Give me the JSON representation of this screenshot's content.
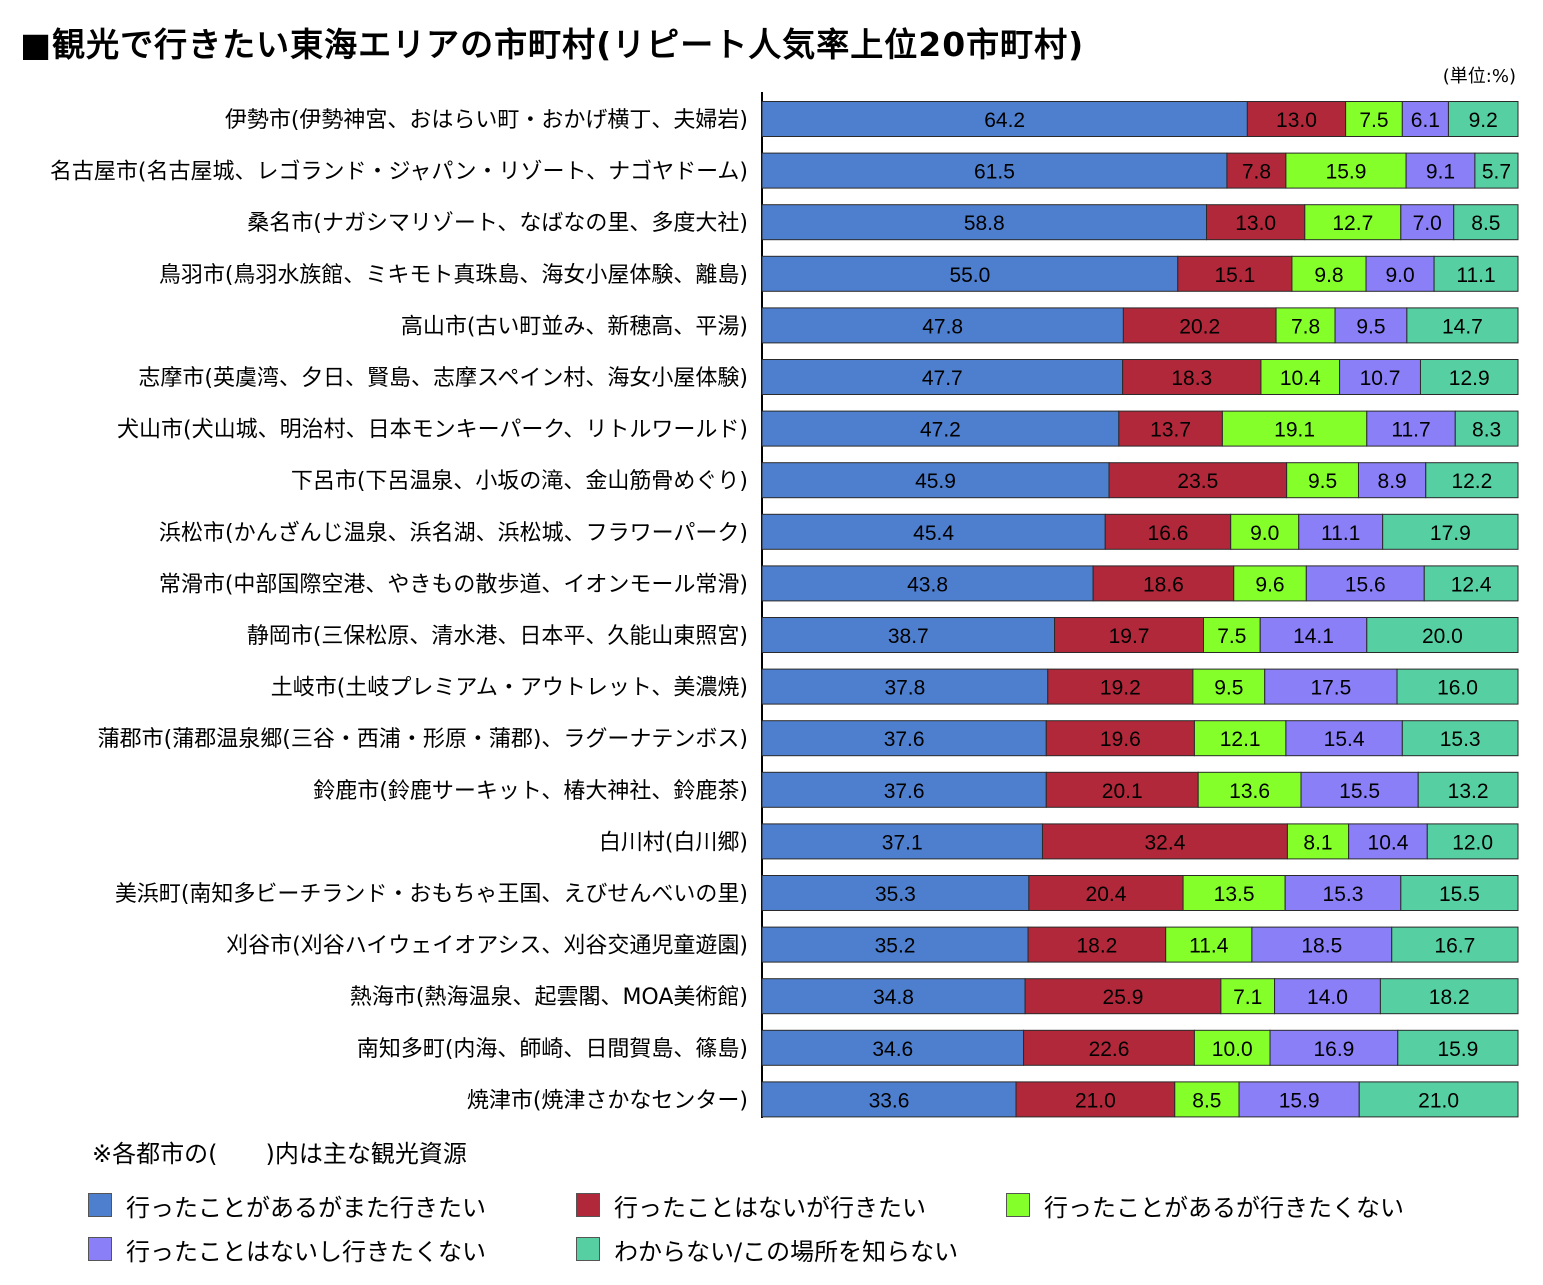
{
  "title": "■観光で行きたい東海エリアの市町村(リピート人気率上位20市町村)",
  "unit": "(単位:%)",
  "note": "※各都市の(　　)内は主な観光資源",
  "colors": [
    "#4e7fcf",
    "#b1283a",
    "#85ff2a",
    "#8a7ff7",
    "#56cfa3"
  ],
  "chart_data": {
    "type": "bar",
    "orientation": "horizontal",
    "stacked": true,
    "xlim": [
      0,
      100
    ],
    "categories": [
      "伊勢市(伊勢神宮、おはらい町・おかげ横丁、夫婦岩)",
      "名古屋市(名古屋城、レゴランド・ジャパン・リゾート、ナゴヤドーム)",
      "桑名市(ナガシマリゾート、なばなの里、多度大社)",
      "鳥羽市(鳥羽水族館、ミキモト真珠島、海女小屋体験、離島)",
      "高山市(古い町並み、新穂高、平湯)",
      "志摩市(英虞湾、夕日、賢島、志摩スペイン村、海女小屋体験)",
      "犬山市(犬山城、明治村、日本モンキーパーク、リトルワールド)",
      "下呂市(下呂温泉、小坂の滝、金山筋骨めぐり)",
      "浜松市(かんざんじ温泉、浜名湖、浜松城、フラワーパーク)",
      "常滑市(中部国際空港、やきもの散歩道、イオンモール常滑)",
      "静岡市(三保松原、清水港、日本平、久能山東照宮)",
      "土岐市(土岐プレミアム・アウトレット、美濃焼)",
      "蒲郡市(蒲郡温泉郷(三谷・西浦・形原・蒲郡)、ラグーナテンボス)",
      "鈴鹿市(鈴鹿サーキット、椿大神社、鈴鹿茶)",
      "白川村(白川郷)",
      "美浜町(南知多ビーチランド・おもちゃ王国、えびせんべいの里)",
      "刈谷市(刈谷ハイウェイオアシス、刈谷交通児童遊園)",
      "熱海市(熱海温泉、起雲閣、MOA美術館)",
      "南知多町(内海、師崎、日間賀島、篠島)",
      "焼津市(焼津さかなセンター)"
    ],
    "series": [
      {
        "name": "行ったことがあるがまた行きたい",
        "values": [
          "64.2",
          "61.5",
          "58.8",
          "55.0",
          "47.8",
          "47.7",
          "47.2",
          "45.9",
          "45.4",
          "43.8",
          "38.7",
          "37.8",
          "37.6",
          "37.6",
          "37.1",
          "35.3",
          "35.2",
          "34.8",
          "34.6",
          "33.6"
        ]
      },
      {
        "name": "行ったことはないが行きたい",
        "values": [
          "13.0",
          "7.8",
          "13.0",
          "15.1",
          "20.2",
          "18.3",
          "13.7",
          "23.5",
          "16.6",
          "18.6",
          "19.7",
          "19.2",
          "19.6",
          "20.1",
          "32.4",
          "20.4",
          "18.2",
          "25.9",
          "22.6",
          "21.0"
        ]
      },
      {
        "name": "行ったことがあるが行きたくない",
        "values": [
          "7.5",
          "15.9",
          "12.7",
          "9.8",
          "7.8",
          "10.4",
          "19.1",
          "9.5",
          "9.0",
          "9.6",
          "7.5",
          "9.5",
          "12.1",
          "13.6",
          "8.1",
          "13.5",
          "11.4",
          "7.1",
          "10.0",
          "8.5"
        ]
      },
      {
        "name": "行ったことはないし行きたくない",
        "values": [
          "6.1",
          "9.1",
          "7.0",
          "9.0",
          "9.5",
          "10.7",
          "11.7",
          "8.9",
          "11.1",
          "15.6",
          "14.1",
          "17.5",
          "15.4",
          "15.5",
          "10.4",
          "15.3",
          "18.5",
          "14.0",
          "16.9",
          "15.9"
        ]
      },
      {
        "name": "わからない/この場所を知らない",
        "values": [
          "9.2",
          "5.7",
          "8.5",
          "11.1",
          "14.7",
          "12.9",
          "8.3",
          "12.2",
          "17.9",
          "12.4",
          "20.0",
          "16.0",
          "15.3",
          "13.2",
          "12.0",
          "15.5",
          "16.7",
          "18.2",
          "15.9",
          "21.0"
        ]
      }
    ]
  }
}
